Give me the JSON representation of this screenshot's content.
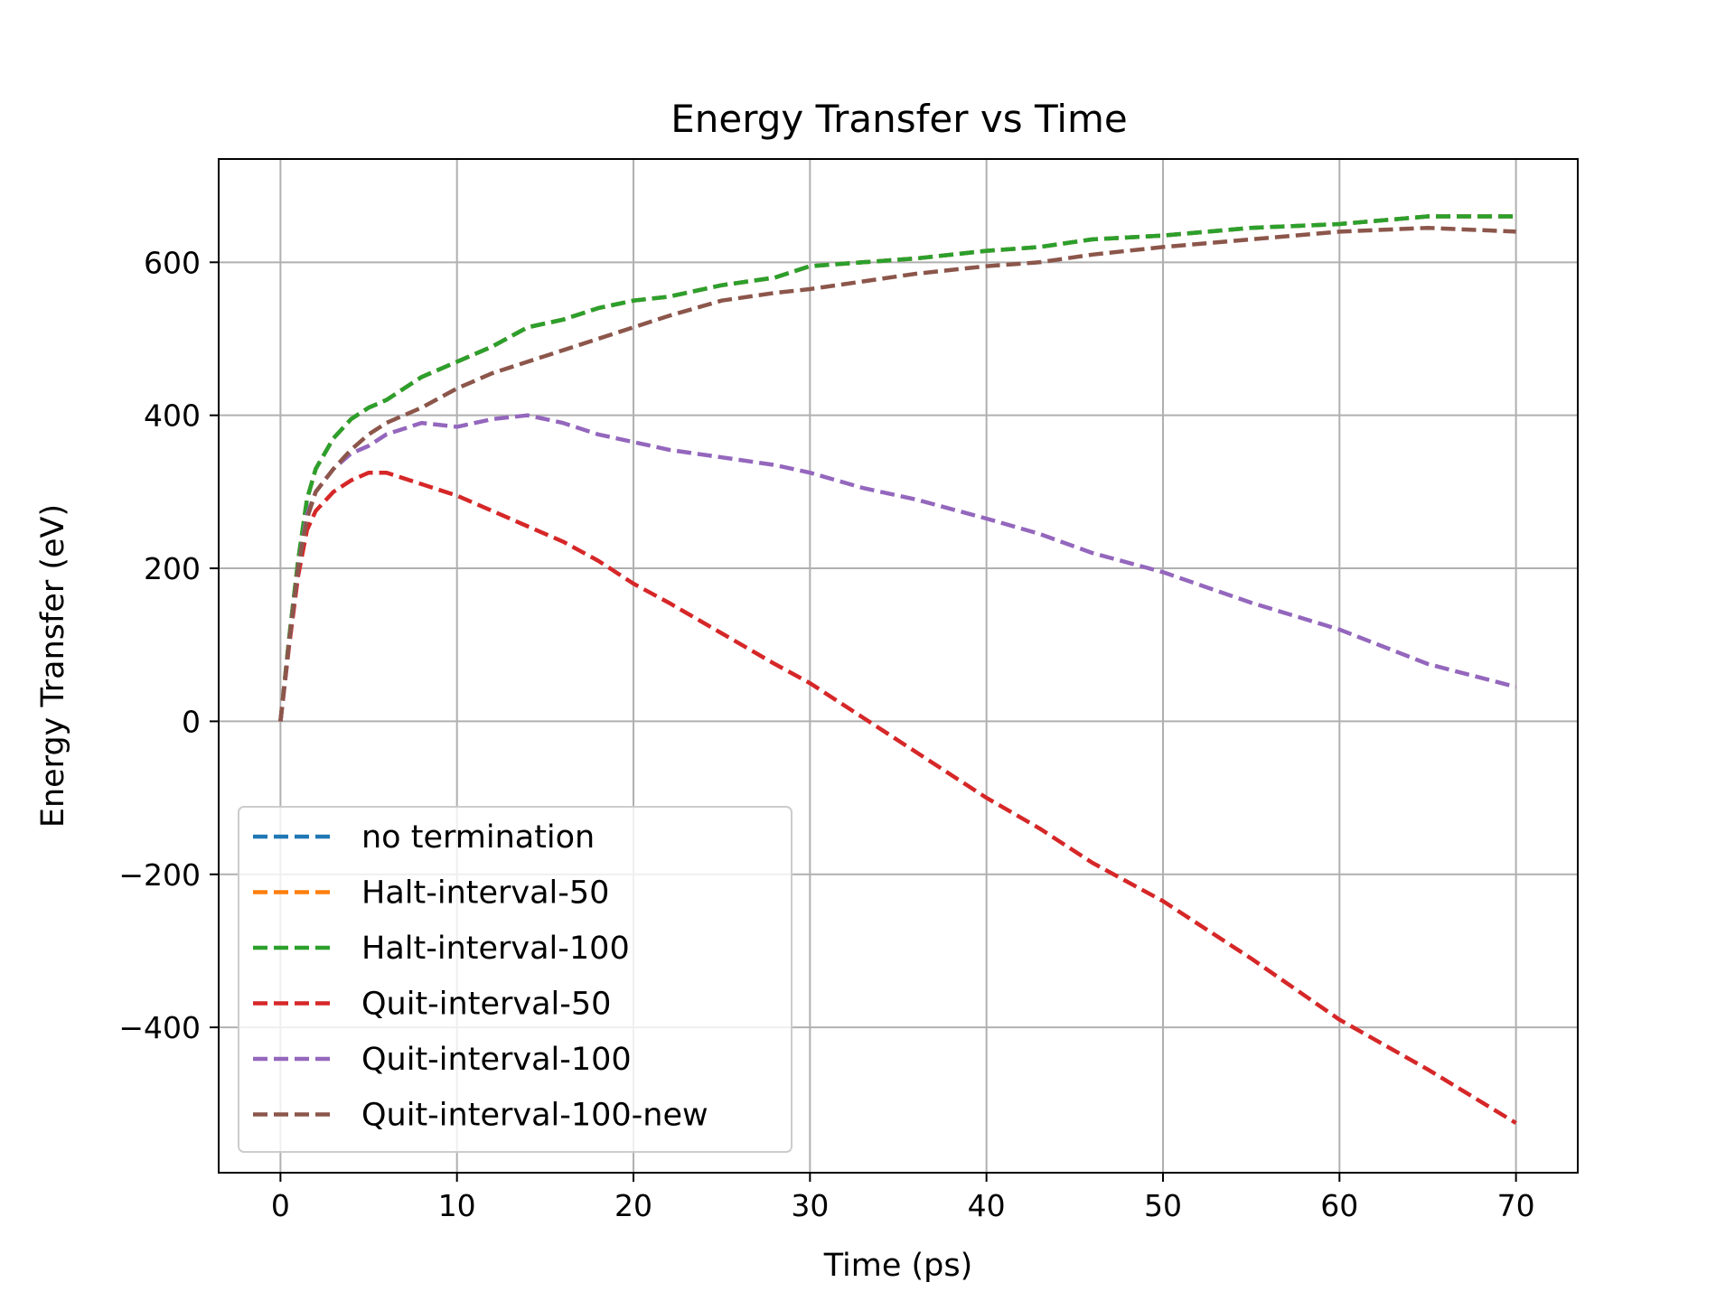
{
  "chart_data": {
    "type": "line",
    "title": "Energy Transfer vs Time",
    "xlabel": "Time (ps)",
    "ylabel": "Energy Transfer (eV)",
    "xlim": [
      -3.5,
      73.5
    ],
    "ylim": [
      -590,
      735
    ],
    "xticks": [
      0,
      10,
      20,
      30,
      40,
      50,
      60,
      70
    ],
    "yticks": [
      -400,
      -200,
      0,
      200,
      400,
      600
    ],
    "xtick_labels": [
      "0",
      "10",
      "20",
      "30",
      "40",
      "50",
      "60",
      "70"
    ],
    "ytick_labels": [
      "−400",
      "−200",
      "0",
      "200",
      "400",
      "600"
    ],
    "grid": true,
    "legend_position": "lower-left",
    "line_style": "dashed",
    "series": [
      {
        "name": "no termination",
        "color": "#1f77b4",
        "x": [
          0,
          0.5,
          1,
          1.5,
          2,
          3,
          4,
          5,
          6,
          8,
          10,
          12,
          14,
          16,
          18,
          20,
          22,
          25,
          28,
          30,
          33,
          36,
          40,
          43,
          46,
          50,
          55,
          60,
          65,
          70
        ],
        "y": [
          0,
          110,
          210,
          290,
          330,
          370,
          395,
          410,
          420,
          450,
          470,
          490,
          515,
          525,
          540,
          550,
          555,
          570,
          580,
          595,
          600,
          605,
          615,
          620,
          630,
          635,
          645,
          650,
          660,
          660
        ]
      },
      {
        "name": "Halt-interval-50",
        "color": "#ff7f0e",
        "x": [
          0,
          0.5,
          1,
          1.5,
          2,
          3,
          4,
          5,
          6,
          8,
          10,
          12,
          14,
          16,
          18,
          20,
          22,
          25,
          28,
          30,
          33,
          36,
          40,
          43,
          46,
          50,
          55,
          60,
          65,
          70
        ],
        "y": [
          0,
          110,
          210,
          290,
          330,
          370,
          395,
          410,
          420,
          450,
          470,
          490,
          515,
          525,
          540,
          550,
          555,
          570,
          580,
          595,
          600,
          605,
          615,
          620,
          630,
          635,
          645,
          650,
          660,
          660
        ]
      },
      {
        "name": "Halt-interval-100",
        "color": "#2ca02c",
        "x": [
          0,
          0.5,
          1,
          1.5,
          2,
          3,
          4,
          5,
          6,
          8,
          10,
          12,
          14,
          16,
          18,
          20,
          22,
          25,
          28,
          30,
          33,
          36,
          40,
          43,
          46,
          50,
          55,
          60,
          65,
          70
        ],
        "y": [
          0,
          110,
          210,
          290,
          330,
          370,
          395,
          410,
          420,
          450,
          470,
          490,
          515,
          525,
          540,
          550,
          555,
          570,
          580,
          595,
          600,
          605,
          615,
          620,
          630,
          635,
          645,
          650,
          660,
          660
        ]
      },
      {
        "name": "Quit-interval-50",
        "color": "#d62728",
        "x": [
          0,
          0.5,
          1,
          1.5,
          2,
          3,
          4,
          5,
          6,
          8,
          10,
          12,
          14,
          16,
          18,
          20,
          22,
          25,
          28,
          30,
          33,
          36,
          40,
          43,
          46,
          50,
          55,
          60,
          65,
          70
        ],
        "y": [
          0,
          100,
          190,
          250,
          275,
          300,
          315,
          325,
          325,
          310,
          295,
          275,
          255,
          235,
          210,
          180,
          155,
          115,
          75,
          50,
          5,
          -40,
          -100,
          -140,
          -185,
          -235,
          -310,
          -390,
          -455,
          -525
        ]
      },
      {
        "name": "Quit-interval-100",
        "color": "#9467bd",
        "x": [
          0,
          0.5,
          1,
          1.5,
          2,
          3,
          4,
          5,
          6,
          8,
          10,
          12,
          14,
          16,
          18,
          20,
          22,
          25,
          28,
          30,
          33,
          36,
          40,
          43,
          46,
          50,
          55,
          60,
          65,
          70
        ],
        "y": [
          0,
          105,
          200,
          270,
          300,
          330,
          350,
          360,
          375,
          390,
          385,
          395,
          400,
          390,
          375,
          365,
          355,
          345,
          335,
          325,
          305,
          290,
          265,
          245,
          220,
          195,
          155,
          120,
          75,
          45
        ]
      },
      {
        "name": "Quit-interval-100-new",
        "color": "#8c564b",
        "x": [
          0,
          0.5,
          1,
          1.5,
          2,
          3,
          4,
          5,
          6,
          8,
          10,
          12,
          14,
          16,
          18,
          20,
          22,
          25,
          28,
          30,
          33,
          36,
          40,
          43,
          46,
          50,
          55,
          60,
          65,
          70
        ],
        "y": [
          0,
          105,
          200,
          265,
          300,
          330,
          355,
          375,
          390,
          410,
          435,
          455,
          470,
          485,
          500,
          515,
          530,
          550,
          560,
          565,
          575,
          585,
          595,
          600,
          610,
          620,
          630,
          640,
          645,
          640
        ]
      }
    ]
  }
}
